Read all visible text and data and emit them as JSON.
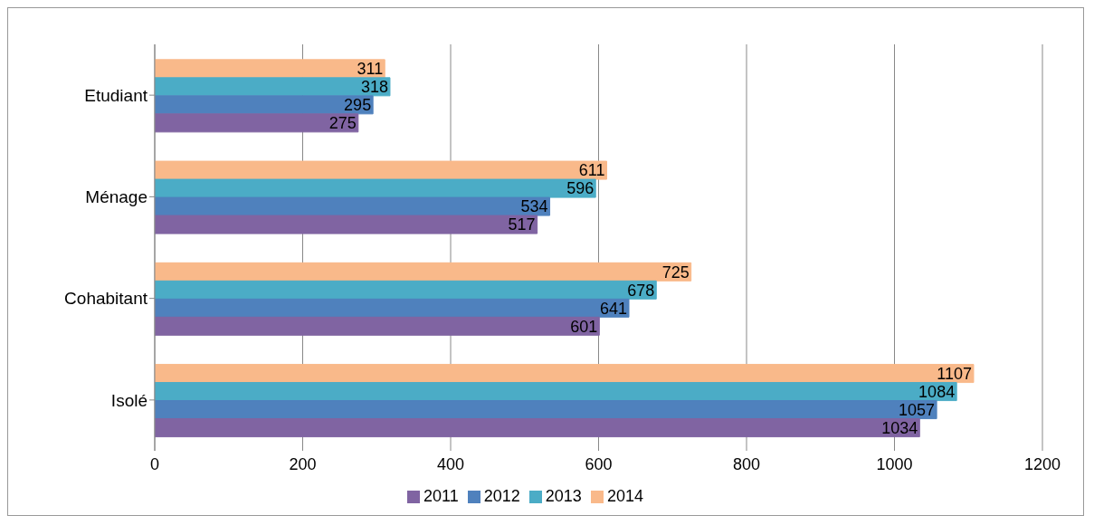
{
  "chart_data": {
    "type": "bar",
    "orientation": "horizontal",
    "categories": [
      "Etudiant",
      "Ménage",
      "Cohabitant",
      "Isolé"
    ],
    "series": [
      {
        "name": "2014",
        "color": "#f9b98a",
        "values": [
          311,
          611,
          725,
          1107
        ]
      },
      {
        "name": "2013",
        "color": "#4bacc6",
        "values": [
          318,
          596,
          678,
          1084
        ]
      },
      {
        "name": "2012",
        "color": "#4f81bd",
        "values": [
          295,
          534,
          641,
          1057
        ]
      },
      {
        "name": "2011",
        "color": "#8064a2",
        "values": [
          275,
          517,
          601,
          1034
        ]
      }
    ],
    "xlim": [
      0,
      1200
    ],
    "xticks": [
      0,
      200,
      400,
      600,
      800,
      1000,
      1200
    ],
    "grid": "x",
    "legend": "bottom",
    "data_labels": true
  }
}
